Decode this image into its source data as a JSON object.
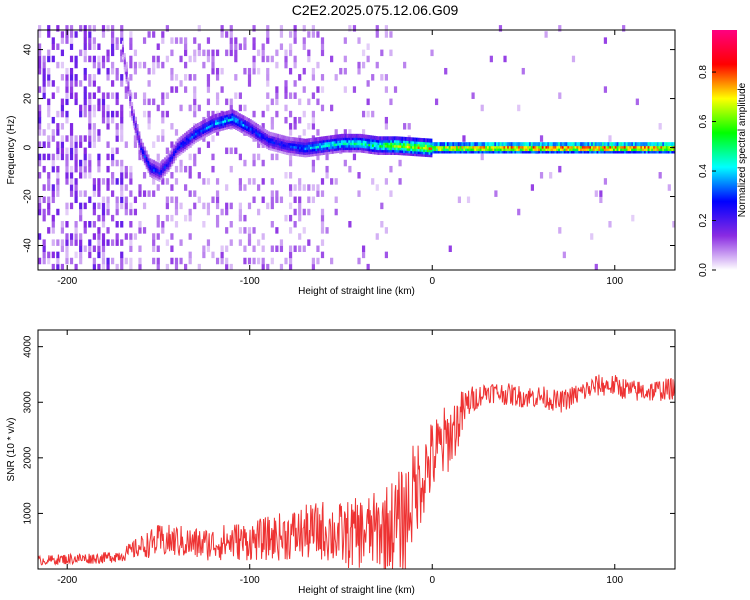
{
  "title": "C2E2.2025.075.12.06.G09",
  "chart_data": [
    {
      "type": "heatmap",
      "xlabel": "Height of straight line (km)",
      "ylabel": "Frequency (Hz)",
      "xlim": [
        -216,
        133
      ],
      "ylim": [
        -50,
        48
      ],
      "xticks": [
        -200,
        -100,
        0,
        100
      ],
      "yticks": [
        -40,
        -20,
        0,
        20,
        40
      ],
      "colorbar": {
        "label": "Normalized spectral amplitude",
        "range": [
          0,
          0.97
        ],
        "ticks": [
          0.0,
          0.2,
          0.4,
          0.6,
          0.8
        ],
        "tick_labels": [
          "0.0",
          "0.2",
          "0.4",
          "0.6",
          "0.8"
        ],
        "colors": [
          "#ffffff",
          "#8a2be2",
          "#0000ff",
          "#00ffff",
          "#00ff00",
          "#ffff00",
          "#ff0000",
          "#ff0080"
        ]
      },
      "ridge": {
        "x": [
          -170,
          -165,
          -160,
          -155,
          -150,
          -145,
          -140,
          -130,
          -120,
          -110,
          -100,
          -90,
          -80,
          -70,
          -60,
          -50,
          -40,
          -30,
          -20,
          -10,
          0,
          20,
          50,
          80,
          100,
          120,
          133
        ],
        "frequency": [
          40,
          15,
          0,
          -8,
          -10,
          -6,
          0,
          6,
          10,
          12,
          8,
          3,
          1,
          0,
          1,
          2,
          2,
          1,
          1,
          0.5,
          0,
          0,
          0,
          0,
          0,
          0,
          0
        ],
        "amplitude": [
          0.15,
          0.2,
          0.3,
          0.35,
          0.3,
          0.3,
          0.3,
          0.35,
          0.4,
          0.45,
          0.35,
          0.3,
          0.3,
          0.4,
          0.45,
          0.5,
          0.5,
          0.55,
          0.7,
          0.75,
          0.8,
          0.85,
          0.9,
          0.9,
          0.9,
          0.9,
          0.9
        ]
      }
    },
    {
      "type": "line",
      "xlabel": "Height of straight line (km)",
      "ylabel": "SNR (10 * v/v)",
      "xlim": [
        -216,
        133
      ],
      "ylim": [
        0,
        4300
      ],
      "xticks": [
        -200,
        -100,
        0,
        100
      ],
      "yticks": [
        1000,
        2000,
        3000,
        4000
      ],
      "color": "#ee3333",
      "series": [
        {
          "x": [
            -216,
            -200,
            -180,
            -170,
            -160,
            -150,
            -140,
            -130,
            -120,
            -110,
            -100,
            -90,
            -80,
            -70,
            -60,
            -50,
            -40,
            -30,
            -20,
            -15,
            -10,
            -5,
            0,
            5,
            10,
            15,
            20,
            25,
            30,
            40,
            50,
            60,
            70,
            80,
            90,
            100,
            110,
            120,
            133
          ],
          "y": [
            150,
            180,
            200,
            250,
            400,
            500,
            500,
            450,
            450,
            500,
            500,
            550,
            600,
            650,
            700,
            600,
            650,
            700,
            800,
            900,
            1400,
            1700,
            2000,
            2200,
            2400,
            2700,
            3000,
            3100,
            3200,
            3150,
            3100,
            3100,
            3000,
            3150,
            3300,
            3300,
            3200,
            3200,
            3250
          ],
          "spread": [
            80,
            100,
            100,
            120,
            200,
            300,
            300,
            300,
            300,
            350,
            350,
            400,
            450,
            500,
            550,
            600,
            650,
            700,
            900,
            1000,
            900,
            800,
            700,
            700,
            600,
            500,
            300,
            200,
            200,
            200,
            200,
            200,
            200,
            200,
            200,
            200,
            200,
            200,
            200
          ]
        }
      ]
    }
  ]
}
